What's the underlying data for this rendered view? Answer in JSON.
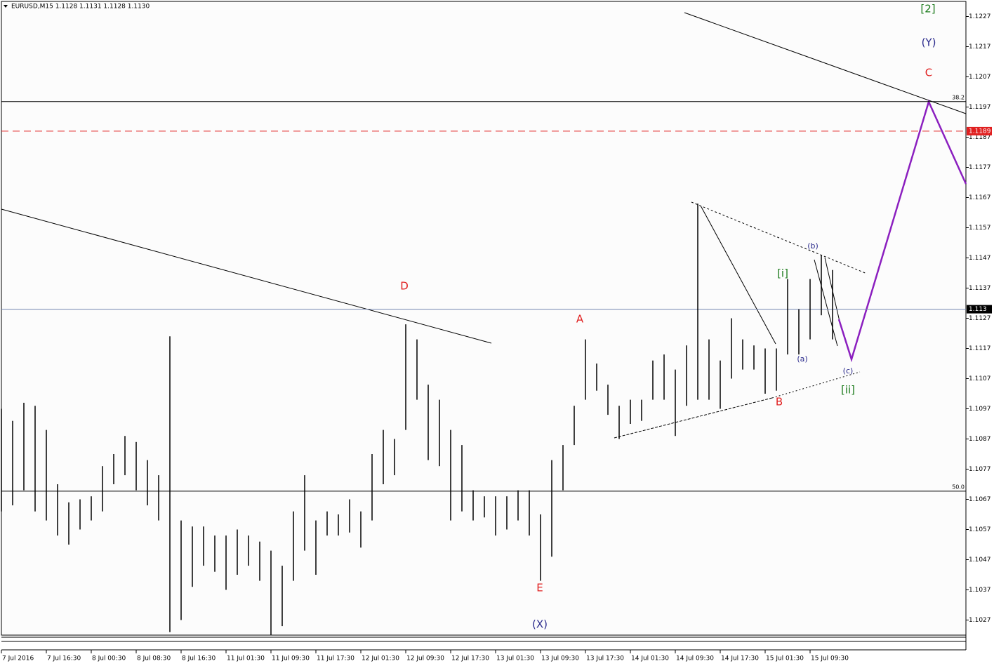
{
  "chart_data": {
    "type": "range-bar",
    "title": "EURUSD,M15  1.1128 1.1131 1.1128 1.1130",
    "high": [
      1.1097,
      1.1093,
      1.1099,
      1.1098,
      1.109,
      1.1072,
      1.1066,
      1.1067,
      1.1068,
      1.1078,
      1.1082,
      1.1088,
      1.1086,
      1.108,
      1.1075,
      1.1121,
      1.106,
      1.1058,
      1.1058,
      1.1055,
      1.1055,
      1.1057,
      1.1055,
      1.1053,
      1.105,
      1.1045,
      1.1063,
      1.1075,
      1.106,
      1.1063,
      1.1062,
      1.1067,
      1.1063,
      1.1082,
      1.109,
      1.1087,
      1.1125,
      1.112,
      1.1105,
      1.11,
      1.109,
      1.1085,
      1.107,
      1.1068,
      1.1068,
      1.1068,
      1.107,
      1.107,
      1.1062,
      1.108,
      1.1085,
      1.1098,
      1.112,
      1.1112,
      1.1105,
      1.1098,
      1.11,
      1.11,
      1.1113,
      1.1115,
      1.111,
      1.1118,
      1.1165,
      1.112,
      1.1113,
      1.1127,
      1.112,
      1.1118,
      1.1117,
      1.1117,
      1.114,
      1.113,
      1.114,
      1.1148,
      1.1143
    ],
    "low": [
      1.1063,
      1.1065,
      1.107,
      1.1063,
      1.106,
      1.1055,
      1.1052,
      1.1057,
      1.106,
      1.1063,
      1.1072,
      1.1075,
      1.107,
      1.1065,
      1.106,
      1.1023,
      1.1027,
      1.1038,
      1.1045,
      1.1043,
      1.1037,
      1.1042,
      1.1045,
      1.104,
      1.1022,
      1.1025,
      1.104,
      1.105,
      1.1042,
      1.1055,
      1.1055,
      1.1056,
      1.1051,
      1.106,
      1.1072,
      1.1075,
      1.109,
      1.11,
      1.108,
      1.1078,
      1.106,
      1.1063,
      1.106,
      1.1061,
      1.1055,
      1.1057,
      1.106,
      1.1055,
      1.104,
      1.1048,
      1.107,
      1.1085,
      1.11,
      1.1103,
      1.1095,
      1.1087,
      1.1092,
      1.1093,
      1.11,
      1.11,
      1.1088,
      1.1098,
      1.11,
      1.11,
      1.1097,
      1.1107,
      1.111,
      1.111,
      1.1102,
      1.1103,
      1.1115,
      1.1115,
      1.112,
      1.1128,
      1.112
    ],
    "color": "#000000",
    "ylim": [
      1.1022,
      1.1232
    ],
    "yticks": [
      1.1027,
      1.1037,
      1.1047,
      1.1057,
      1.1067,
      1.1077,
      1.1087,
      1.1097,
      1.1107,
      1.1117,
      1.1127,
      1.1137,
      1.1147,
      1.1157,
      1.1167,
      1.1177,
      1.1187,
      1.1197,
      1.1207,
      1.1217,
      1.1227
    ],
    "xlim": [
      0,
      85.875
    ],
    "xticks": [
      {
        "value": 0,
        "label": "7 Jul 2016"
      },
      {
        "value": 4,
        "label": "7 Jul 16:30"
      },
      {
        "value": 8,
        "label": "8 Jul 00:30"
      },
      {
        "value": 12,
        "label": "8 Jul 08:30"
      },
      {
        "value": 16,
        "label": "8 Jul 16:30"
      },
      {
        "value": 20,
        "label": "11 Jul 01:30"
      },
      {
        "value": 24,
        "label": "11 Jul 09:30"
      },
      {
        "value": 28,
        "label": "11 Jul 17:30"
      },
      {
        "value": 32,
        "label": "12 Jul 01:30"
      },
      {
        "value": 36,
        "label": "12 Jul 09:30"
      },
      {
        "value": 40,
        "label": "12 Jul 17:30"
      },
      {
        "value": 44,
        "label": "13 Jul 01:30"
      },
      {
        "value": 48,
        "label": "13 Jul 09:30"
      },
      {
        "value": 52,
        "label": "13 Jul 17:30"
      },
      {
        "value": 56,
        "label": "14 Jul 01:30"
      },
      {
        "value": 60,
        "label": "14 Jul 09:30"
      },
      {
        "value": 64,
        "label": "14 Jul 17:30"
      },
      {
        "value": 68,
        "label": "15 Jul 01:30"
      },
      {
        "value": 72,
        "label": "15 Jul 09:30"
      }
    ],
    "price_line": 1.113,
    "alert_line": 1.1189,
    "fib_levels": [
      {
        "value": 1.11988,
        "label": "38.2"
      },
      {
        "value": 1.10697,
        "label": "50.0"
      }
    ],
    "annotations": [
      "D",
      "A",
      "E",
      "B",
      "C",
      "(X)",
      "(Y)",
      "[2]",
      "[i]",
      "[ii]",
      "(a)",
      "(b)",
      "(c)"
    ]
  }
}
